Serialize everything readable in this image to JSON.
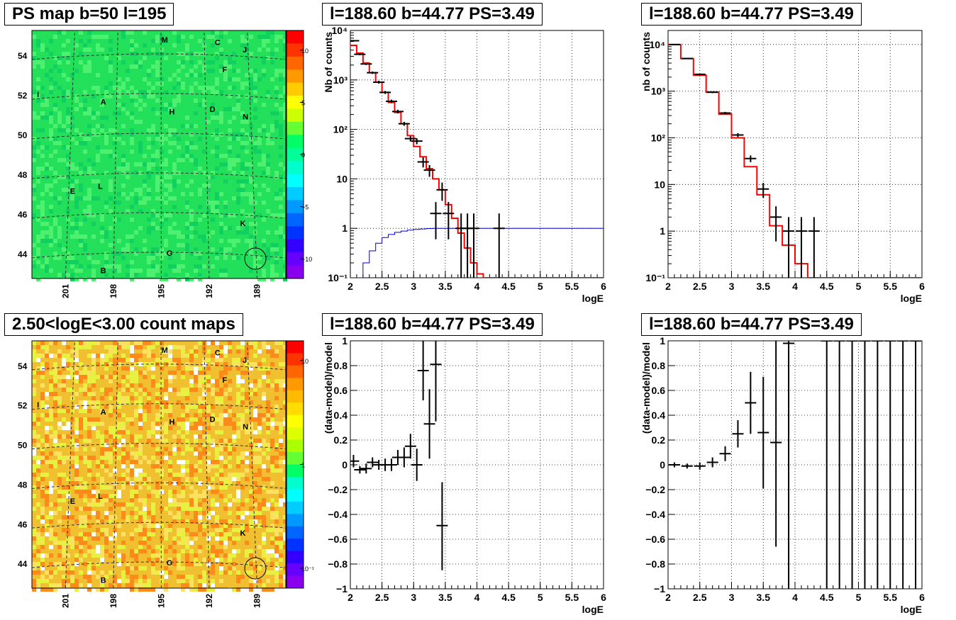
{
  "titles": {
    "ps_map": "PS map b=50 l=195",
    "count_map": "2.50<logE<3.00 count maps",
    "top_mid": "l=188.60 b=44.77 PS=3.49",
    "top_right": "l=188.60 b=44.77 PS=3.49",
    "bot_mid": "l=188.60 b=44.77 PS=3.49",
    "bot_right": "l=188.60 b=44.77 PS=3.49"
  },
  "colors": {
    "model": "#ff0000",
    "exposure": "#0000cc",
    "data": "#000000",
    "ps_map_bg": "#22e05a",
    "count_map_bg": "#f0c030"
  },
  "maps": {
    "lat_ticks": [
      "54",
      "52",
      "50",
      "48",
      "46",
      "44"
    ],
    "lon_ticks": [
      "201",
      "198",
      "195",
      "192",
      "189"
    ],
    "source_labels": [
      "M",
      "C",
      "J",
      "F",
      "I",
      "A",
      "H",
      "D",
      "N",
      "E",
      "L",
      "K",
      "G",
      "B"
    ],
    "ps_colorbar_ticks": [
      "10",
      "5",
      "0",
      "−5",
      "−10"
    ],
    "count_colorbar_ticks": [
      "10",
      "1",
      "10⁻¹"
    ]
  },
  "chart_data": [
    {
      "type": "line",
      "panel": "top_mid",
      "title": "l=188.60 b=44.77 PS=3.49",
      "xlabel": "logE",
      "ylabel": "Nb of counts",
      "xlim": [
        2,
        6
      ],
      "ylim": [
        0.1,
        10000
      ],
      "yscale": "log",
      "grid": true,
      "xticks": [
        "2",
        "2.5",
        "3",
        "3.5",
        "4",
        "4.5",
        "5",
        "5.5",
        "6"
      ],
      "yticks": [
        "10⁻¹",
        "1",
        "10",
        "10²",
        "10³",
        "10⁴"
      ],
      "series": [
        {
          "role": "model",
          "edges": [
            2.0,
            2.1,
            2.2,
            2.3,
            2.4,
            2.5,
            2.6,
            2.7,
            2.8,
            2.9,
            3.0,
            3.1,
            3.2,
            3.3,
            3.4,
            3.5,
            3.6,
            3.7,
            3.8,
            3.9,
            4.0,
            4.1,
            6.0
          ],
          "values": [
            5000,
            3500,
            2200,
            1400,
            900,
            560,
            350,
            220,
            130,
            75,
            45,
            28,
            16,
            10,
            6,
            3,
            1.6,
            0.8,
            0.4,
            0.2,
            0.12,
            0.1
          ]
        },
        {
          "role": "exposure",
          "edges": [
            2.0,
            2.1,
            2.2,
            2.3,
            2.4,
            2.5,
            2.6,
            2.7,
            2.8,
            2.9,
            3.0,
            3.1,
            3.2,
            3.3,
            6.0
          ],
          "values": [
            0.07,
            0.1,
            0.2,
            0.35,
            0.5,
            0.65,
            0.75,
            0.83,
            0.88,
            0.92,
            0.95,
            0.97,
            0.99,
            1.0
          ]
        },
        {
          "role": "data",
          "points": [
            {
              "x": 2.05,
              "y": 6200,
              "lo": 6000,
              "hi": 6400
            },
            {
              "x": 2.15,
              "y": 3300,
              "lo": 3150,
              "hi": 3450
            },
            {
              "x": 2.25,
              "y": 2100,
              "lo": 2000,
              "hi": 2200
            },
            {
              "x": 2.35,
              "y": 1400,
              "lo": 1320,
              "hi": 1480
            },
            {
              "x": 2.45,
              "y": 900,
              "lo": 840,
              "hi": 960
            },
            {
              "x": 2.55,
              "y": 560,
              "lo": 520,
              "hi": 600
            },
            {
              "x": 2.65,
              "y": 370,
              "lo": 340,
              "hi": 400
            },
            {
              "x": 2.75,
              "y": 230,
              "lo": 210,
              "hi": 250
            },
            {
              "x": 2.85,
              "y": 130,
              "lo": 118,
              "hi": 142
            },
            {
              "x": 2.95,
              "y": 65,
              "lo": 57,
              "hi": 73
            },
            {
              "x": 3.05,
              "y": 58,
              "lo": 50,
              "hi": 66
            },
            {
              "x": 3.15,
              "y": 22,
              "lo": 17,
              "hi": 27
            },
            {
              "x": 3.25,
              "y": 15,
              "lo": 11,
              "hi": 19
            },
            {
              "x": 3.35,
              "y": 2,
              "lo": 0.6,
              "hi": 3.4
            },
            {
              "x": 3.45,
              "y": 6,
              "lo": 3.6,
              "hi": 8.4
            },
            {
              "x": 3.55,
              "y": 2,
              "lo": 0.6,
              "hi": 3.4
            },
            {
              "x": 3.75,
              "y": 1,
              "lo": 0.1,
              "hi": 2
            },
            {
              "x": 3.85,
              "y": 1,
              "lo": 0.1,
              "hi": 2
            },
            {
              "x": 3.95,
              "y": 1,
              "lo": 0.1,
              "hi": 2
            },
            {
              "x": 4.35,
              "y": 1,
              "lo": 0.1,
              "hi": 2
            }
          ]
        }
      ]
    },
    {
      "type": "line",
      "panel": "top_right",
      "title": "l=188.60 b=44.77 PS=3.49",
      "xlabel": "logE",
      "ylabel": "nb of counts",
      "xlim": [
        2,
        6
      ],
      "ylim": [
        0.1,
        20000
      ],
      "yscale": "log",
      "grid": true,
      "xticks": [
        "2",
        "2.5",
        "3",
        "3.5",
        "4",
        "4.5",
        "5",
        "5.5",
        "6"
      ],
      "yticks": [
        "10⁻¹",
        "1",
        "10",
        "10²",
        "10³",
        "10⁴"
      ],
      "series": [
        {
          "role": "model",
          "edges": [
            2.0,
            2.2,
            2.4,
            2.6,
            2.8,
            3.0,
            3.2,
            3.4,
            3.6,
            3.8,
            4.0,
            4.2,
            6.0
          ],
          "values": [
            10000,
            5000,
            2200,
            950,
            320,
            100,
            24,
            6,
            1.3,
            0.5,
            0.2,
            0.1
          ]
        },
        {
          "role": "data",
          "points": [
            {
              "x": 2.1,
              "y": 10000,
              "lo": 9800,
              "hi": 10200
            },
            {
              "x": 2.3,
              "y": 5000,
              "lo": 4900,
              "hi": 5100
            },
            {
              "x": 2.5,
              "y": 2300,
              "lo": 2230,
              "hi": 2370
            },
            {
              "x": 2.7,
              "y": 950,
              "lo": 910,
              "hi": 990
            },
            {
              "x": 2.9,
              "y": 340,
              "lo": 320,
              "hi": 360
            },
            {
              "x": 3.1,
              "y": 115,
              "lo": 104,
              "hi": 126
            },
            {
              "x": 3.3,
              "y": 36,
              "lo": 30,
              "hi": 42
            },
            {
              "x": 3.5,
              "y": 8,
              "lo": 5.2,
              "hi": 10.8
            },
            {
              "x": 3.7,
              "y": 2,
              "lo": 0.6,
              "hi": 3.4
            },
            {
              "x": 3.9,
              "y": 1,
              "lo": 0.1,
              "hi": 2
            },
            {
              "x": 4.1,
              "y": 1,
              "lo": 0.1,
              "hi": 2
            },
            {
              "x": 4.3,
              "y": 1,
              "lo": 0.1,
              "hi": 2
            }
          ]
        }
      ]
    },
    {
      "type": "scatter",
      "panel": "bot_mid",
      "title": "l=188.60 b=44.77 PS=3.49",
      "xlabel": "logE",
      "ylabel": "(data-model)/model",
      "xlim": [
        2,
        6
      ],
      "ylim": [
        -1,
        1
      ],
      "grid": true,
      "xticks": [
        "2",
        "2.5",
        "3",
        "3.5",
        "4",
        "4.5",
        "5",
        "5.5",
        "6"
      ],
      "yticks": [
        "−1",
        "−0.8",
        "−0.6",
        "−0.4",
        "−0.2",
        "0",
        "0.2",
        "0.4",
        "0.6",
        "0.8",
        "1"
      ],
      "series": [
        {
          "role": "data",
          "points": [
            {
              "x": 2.05,
              "y": 0.03,
              "lo": -0.02,
              "hi": 0.08
            },
            {
              "x": 2.15,
              "y": -0.04,
              "lo": -0.07,
              "hi": -0.01
            },
            {
              "x": 2.25,
              "y": -0.03,
              "lo": -0.07,
              "hi": 0.01
            },
            {
              "x": 2.35,
              "y": 0.02,
              "lo": -0.02,
              "hi": 0.06
            },
            {
              "x": 2.45,
              "y": 0.0,
              "lo": -0.04,
              "hi": 0.04
            },
            {
              "x": 2.55,
              "y": 0.0,
              "lo": -0.05,
              "hi": 0.05
            },
            {
              "x": 2.65,
              "y": 0.0,
              "lo": -0.05,
              "hi": 0.05
            },
            {
              "x": 2.75,
              "y": 0.06,
              "lo": 0.0,
              "hi": 0.12
            },
            {
              "x": 2.85,
              "y": 0.06,
              "lo": -0.02,
              "hi": 0.14
            },
            {
              "x": 2.95,
              "y": 0.15,
              "lo": 0.05,
              "hi": 0.25
            },
            {
              "x": 3.05,
              "y": 0.0,
              "lo": -0.13,
              "hi": 0.13
            },
            {
              "x": 3.15,
              "y": 0.76,
              "lo": 0.52,
              "hi": 1.0
            },
            {
              "x": 3.25,
              "y": 0.33,
              "lo": 0.05,
              "hi": 0.61
            },
            {
              "x": 3.35,
              "y": 0.81,
              "lo": 0.35,
              "hi": 1.0
            },
            {
              "x": 3.45,
              "y": -0.49,
              "lo": -0.85,
              "hi": -0.14
            }
          ]
        }
      ]
    },
    {
      "type": "scatter",
      "panel": "bot_right",
      "title": "l=188.60 b=44.77 PS=3.49",
      "xlabel": "logE",
      "ylabel": "(data-model)/model",
      "xlim": [
        2,
        6
      ],
      "ylim": [
        -1,
        1
      ],
      "grid": true,
      "xticks": [
        "2",
        "2.5",
        "3",
        "3.5",
        "4",
        "4.5",
        "5",
        "5.5",
        "6"
      ],
      "yticks": [
        "−1",
        "−0.8",
        "−0.6",
        "−0.4",
        "−0.2",
        "0",
        "0.2",
        "0.4",
        "0.6",
        "0.8",
        "1"
      ],
      "series": [
        {
          "role": "data",
          "points": [
            {
              "x": 2.1,
              "y": 0.0,
              "lo": -0.02,
              "hi": 0.02
            },
            {
              "x": 2.3,
              "y": -0.01,
              "lo": -0.03,
              "hi": 0.01
            },
            {
              "x": 2.5,
              "y": -0.01,
              "lo": -0.04,
              "hi": 0.02
            },
            {
              "x": 2.7,
              "y": 0.02,
              "lo": -0.02,
              "hi": 0.06
            },
            {
              "x": 2.9,
              "y": 0.09,
              "lo": 0.03,
              "hi": 0.15
            },
            {
              "x": 3.1,
              "y": 0.25,
              "lo": 0.14,
              "hi": 0.36
            },
            {
              "x": 3.3,
              "y": 0.5,
              "lo": 0.25,
              "hi": 0.75
            },
            {
              "x": 3.5,
              "y": 0.26,
              "lo": -0.19,
              "hi": 0.71
            },
            {
              "x": 3.7,
              "y": 0.18,
              "lo": -0.66,
              "hi": 1.0
            },
            {
              "x": 3.9,
              "y": 0.98,
              "lo": -1.0,
              "hi": 1.0
            },
            {
              "x": 4.5,
              "y": 1.0,
              "lo": -1.0,
              "hi": 1.0
            },
            {
              "x": 4.7,
              "y": 1.0,
              "lo": -1.0,
              "hi": 1.0
            },
            {
              "x": 4.9,
              "y": 1.0,
              "lo": -1.0,
              "hi": 1.0
            },
            {
              "x": 5.1,
              "y": 1.0,
              "lo": -1.0,
              "hi": 1.0
            },
            {
              "x": 5.3,
              "y": 1.0,
              "lo": -1.0,
              "hi": 1.0
            },
            {
              "x": 5.5,
              "y": 1.0,
              "lo": -1.0,
              "hi": 1.0
            },
            {
              "x": 5.7,
              "y": 1.0,
              "lo": -1.0,
              "hi": 1.0
            },
            {
              "x": 5.9,
              "y": 1.0,
              "lo": -1.0,
              "hi": 1.0
            }
          ]
        }
      ]
    }
  ]
}
